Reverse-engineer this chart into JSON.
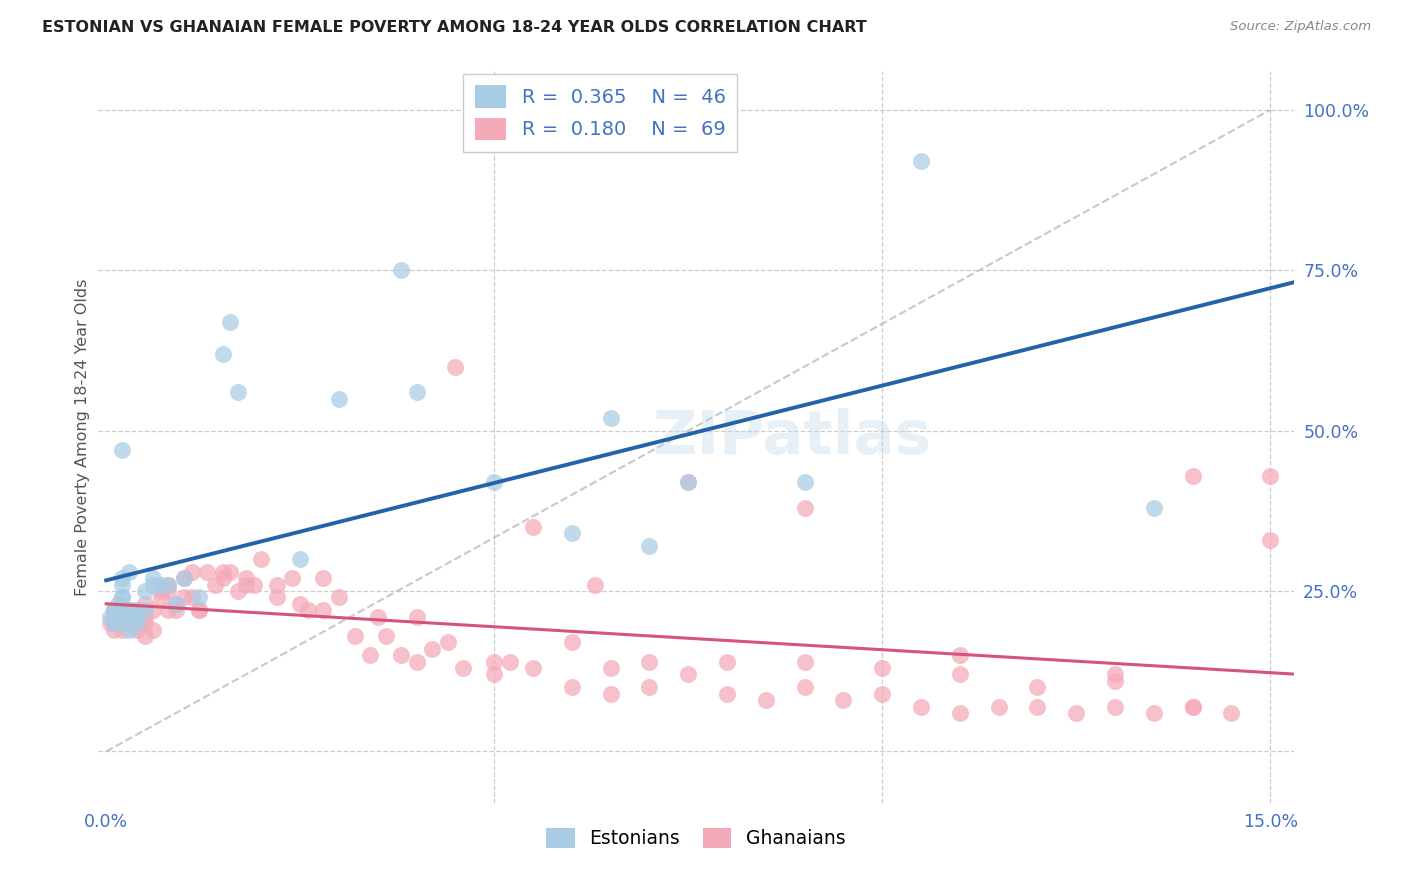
{
  "title": "ESTONIAN VS GHANAIAN FEMALE POVERTY AMONG 18-24 YEAR OLDS CORRELATION CHART",
  "source": "Source: ZipAtlas.com",
  "ylabel": "Female Poverty Among 18-24 Year Olds",
  "xlim": [
    -0.001,
    0.153
  ],
  "ylim": [
    -0.08,
    1.06
  ],
  "yticks_right": [
    0.0,
    0.25,
    0.5,
    0.75,
    1.0
  ],
  "yticklabels_right": [
    "",
    "25.0%",
    "50.0%",
    "75.0%",
    "100.0%"
  ],
  "xtick_vals": [
    0.0,
    0.05,
    0.1,
    0.15
  ],
  "xticklabels": [
    "0.0%",
    "",
    "",
    "15.0%"
  ],
  "watermark": "ZIPatlas",
  "legend_r1": "0.365",
  "legend_n1": "46",
  "legend_r2": "0.180",
  "legend_n2": "69",
  "color_estonian": "#a8cce4",
  "color_ghanaian": "#f4aab8",
  "color_estonian_line": "#2563a8",
  "color_ghanaian_line": "#d4547a",
  "color_dashed": "#bbbbbb",
  "color_axis_blue": "#4472c4",
  "color_title": "#222222",
  "color_source": "#888888",
  "background": "#ffffff",
  "est_x": [
    0.0005,
    0.001,
    0.001,
    0.001,
    0.001,
    0.001,
    0.001,
    0.0015,
    0.0015,
    0.002,
    0.002,
    0.002,
    0.002,
    0.002,
    0.003,
    0.003,
    0.003,
    0.003,
    0.003,
    0.004,
    0.004,
    0.004,
    0.005,
    0.005,
    0.006,
    0.006,
    0.007,
    0.008,
    0.009,
    0.01,
    0.012,
    0.015,
    0.016,
    0.017,
    0.025,
    0.03,
    0.038,
    0.04,
    0.05,
    0.06,
    0.065,
    0.07,
    0.075,
    0.09,
    0.105,
    0.135
  ],
  "est_y": [
    0.21,
    0.22,
    0.2,
    0.21,
    0.22,
    0.2,
    0.22,
    0.23,
    0.21,
    0.24,
    0.27,
    0.47,
    0.26,
    0.24,
    0.22,
    0.21,
    0.2,
    0.28,
    0.19,
    0.22,
    0.2,
    0.21,
    0.22,
    0.25,
    0.26,
    0.27,
    0.26,
    0.26,
    0.23,
    0.27,
    0.24,
    0.62,
    0.67,
    0.56,
    0.3,
    0.55,
    0.75,
    0.56,
    0.42,
    0.34,
    0.52,
    0.32,
    0.42,
    0.42,
    0.92,
    0.38
  ],
  "gha_x": [
    0.0005,
    0.001,
    0.001,
    0.001,
    0.001,
    0.001,
    0.002,
    0.002,
    0.002,
    0.002,
    0.003,
    0.003,
    0.003,
    0.003,
    0.003,
    0.004,
    0.004,
    0.004,
    0.005,
    0.005,
    0.005,
    0.006,
    0.006,
    0.007,
    0.007,
    0.008,
    0.008,
    0.009,
    0.009,
    0.01,
    0.011,
    0.011,
    0.012,
    0.013,
    0.014,
    0.015,
    0.016,
    0.017,
    0.018,
    0.019,
    0.02,
    0.022,
    0.024,
    0.026,
    0.028,
    0.03,
    0.032,
    0.034,
    0.036,
    0.038,
    0.04,
    0.042,
    0.044,
    0.046,
    0.05,
    0.052,
    0.055,
    0.06,
    0.065,
    0.07,
    0.075,
    0.08,
    0.09,
    0.1,
    0.11,
    0.12,
    0.13,
    0.14,
    0.15
  ],
  "gha_y": [
    0.2,
    0.22,
    0.2,
    0.19,
    0.22,
    0.21,
    0.21,
    0.2,
    0.22,
    0.19,
    0.21,
    0.22,
    0.2,
    0.22,
    0.21,
    0.2,
    0.22,
    0.19,
    0.21,
    0.2,
    0.18,
    0.22,
    0.19,
    0.25,
    0.24,
    0.26,
    0.22,
    0.23,
    0.22,
    0.24,
    0.28,
    0.24,
    0.22,
    0.28,
    0.26,
    0.27,
    0.28,
    0.25,
    0.27,
    0.26,
    0.3,
    0.24,
    0.27,
    0.22,
    0.22,
    0.24,
    0.18,
    0.15,
    0.18,
    0.15,
    0.14,
    0.16,
    0.17,
    0.13,
    0.14,
    0.14,
    0.13,
    0.17,
    0.13,
    0.14,
    0.12,
    0.14,
    0.14,
    0.13,
    0.12,
    0.1,
    0.11,
    0.07,
    0.33
  ],
  "gha_x2": [
    0.001,
    0.002,
    0.003,
    0.004,
    0.005,
    0.008,
    0.01,
    0.012,
    0.015,
    0.018,
    0.022,
    0.025,
    0.028,
    0.035,
    0.04,
    0.05,
    0.06,
    0.065,
    0.07,
    0.08,
    0.085,
    0.09,
    0.095,
    0.1,
    0.105,
    0.11,
    0.115,
    0.12,
    0.125,
    0.13,
    0.135,
    0.14,
    0.145,
    0.15
  ],
  "gha_y2": [
    0.21,
    0.22,
    0.21,
    0.21,
    0.23,
    0.25,
    0.27,
    0.22,
    0.28,
    0.26,
    0.26,
    0.23,
    0.27,
    0.21,
    0.21,
    0.12,
    0.1,
    0.09,
    0.1,
    0.09,
    0.08,
    0.1,
    0.08,
    0.09,
    0.07,
    0.06,
    0.07,
    0.07,
    0.06,
    0.07,
    0.06,
    0.07,
    0.06,
    0.43
  ],
  "extra_gha_x": [
    0.045,
    0.055,
    0.063,
    0.075,
    0.09,
    0.11,
    0.13,
    0.14
  ],
  "extra_gha_y": [
    0.6,
    0.35,
    0.26,
    0.42,
    0.38,
    0.15,
    0.12,
    0.43
  ]
}
